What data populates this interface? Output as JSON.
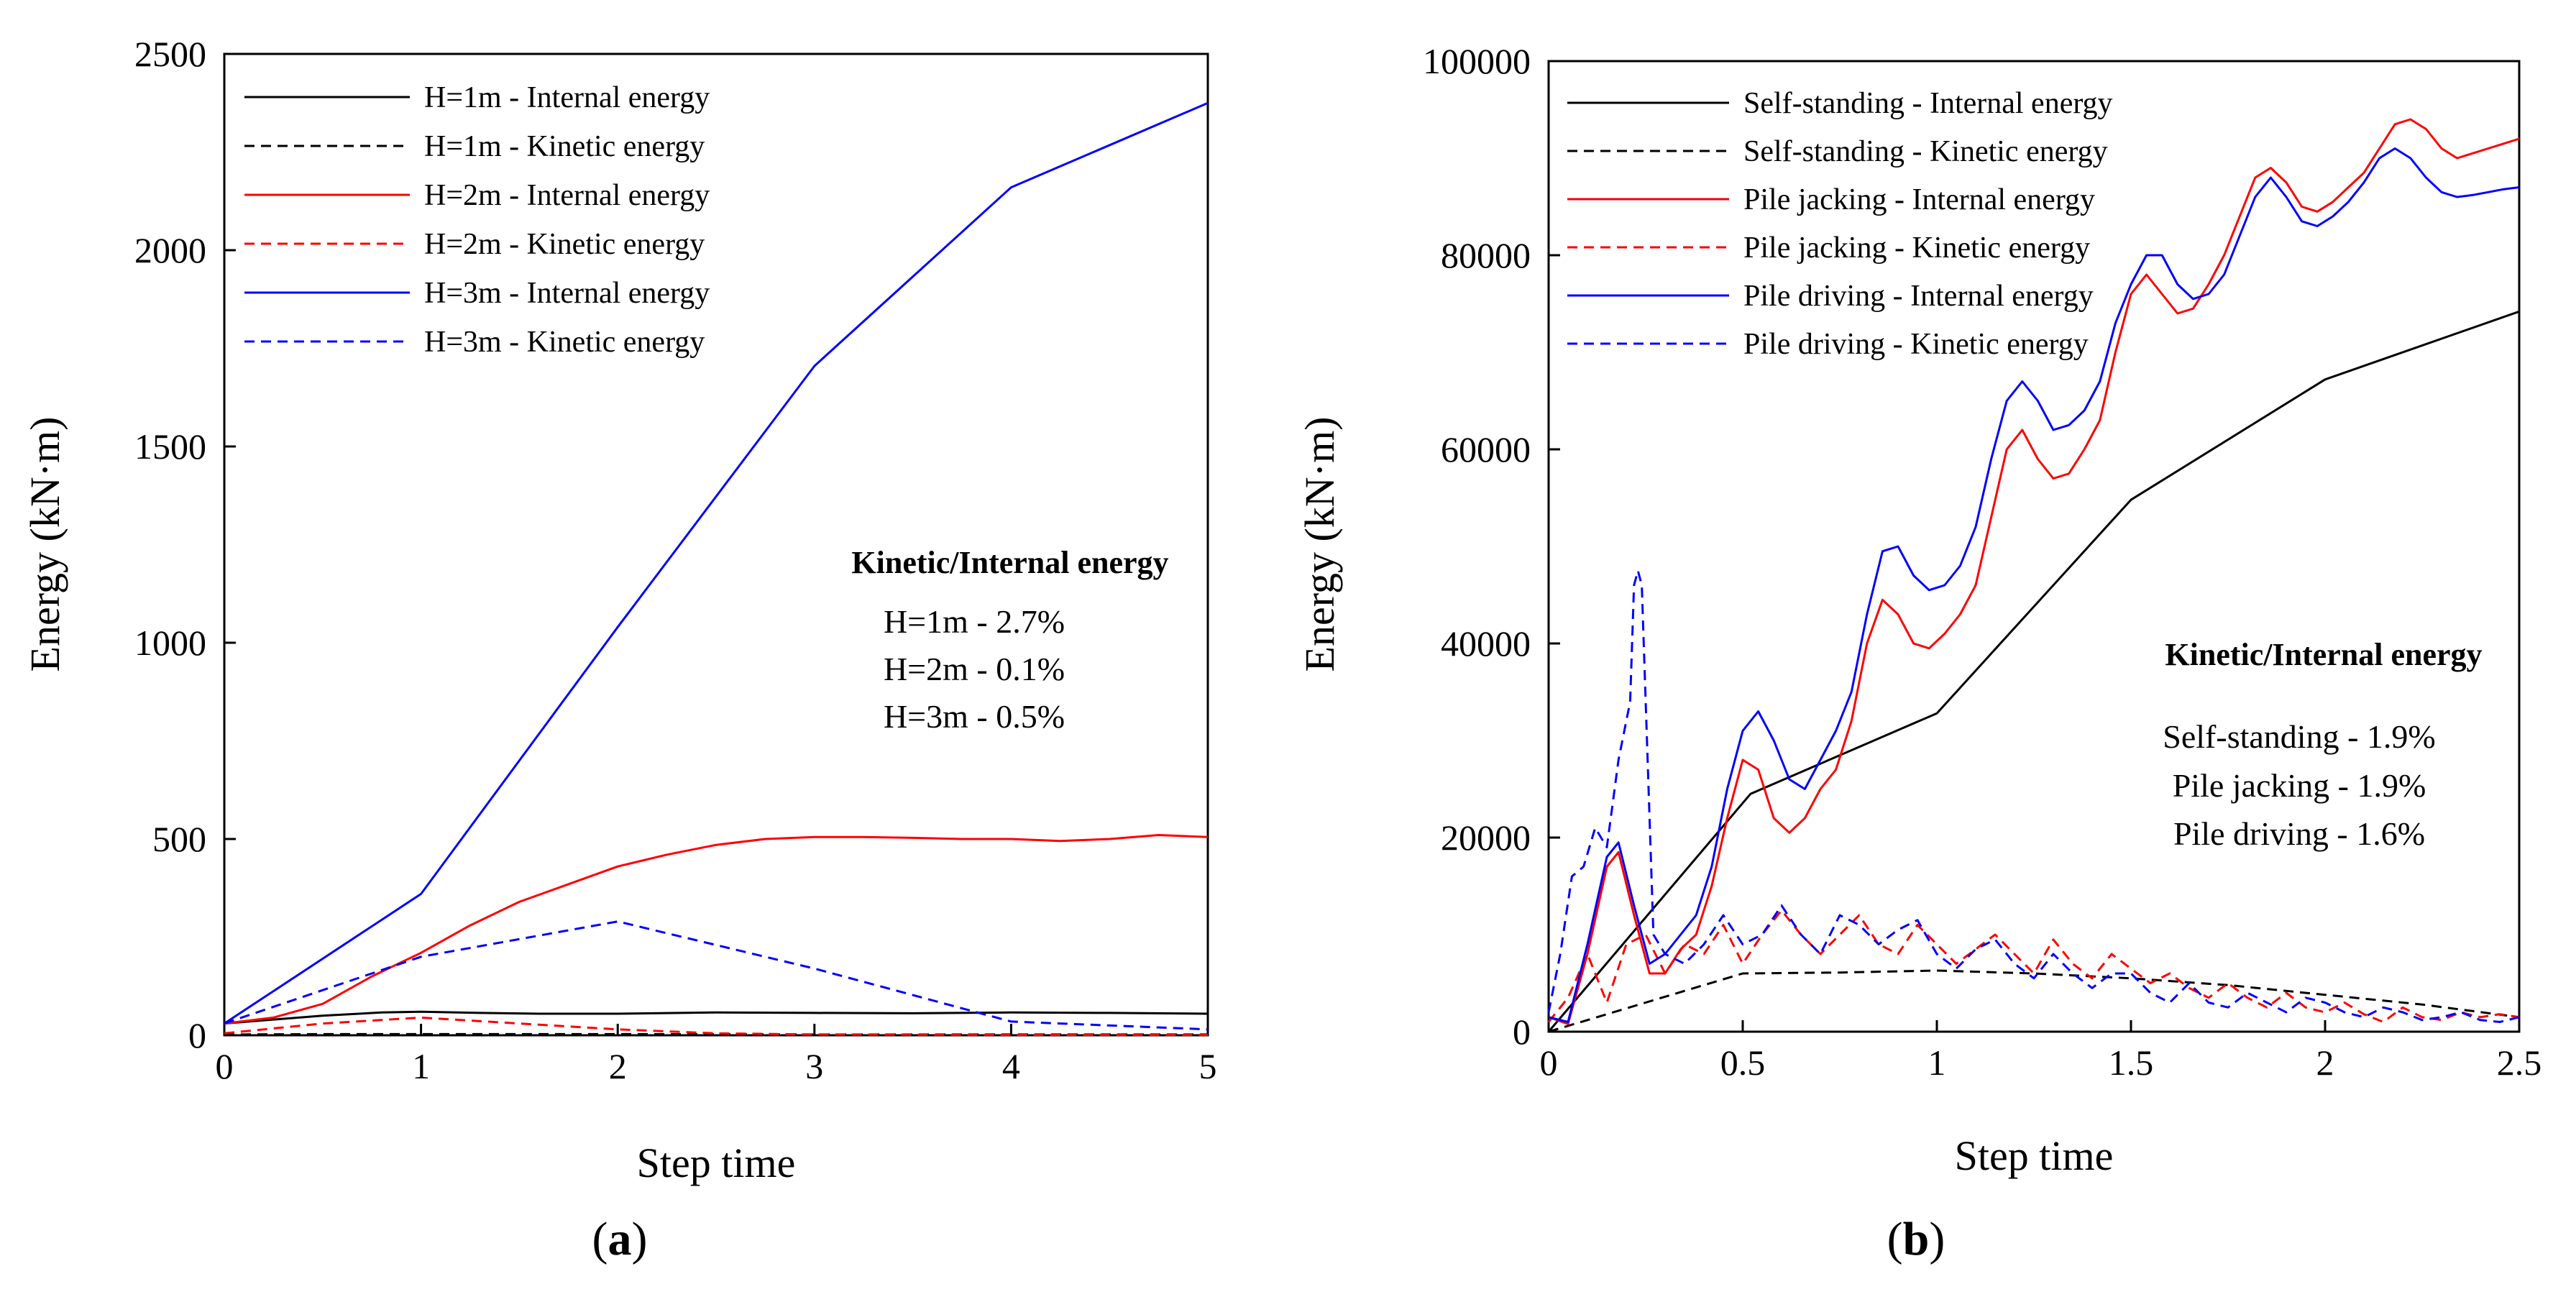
{
  "chart_data": [
    {
      "type": "line",
      "panel_label": "a",
      "xlabel": "Step time",
      "ylabel": "Energy (kN·m)",
      "xlim": [
        0,
        5
      ],
      "ylim": [
        0,
        2500
      ],
      "xticks": [
        0,
        1,
        2,
        3,
        4,
        5
      ],
      "yticks": [
        0,
        500,
        1000,
        1500,
        2000,
        2500
      ],
      "legend_position": "top-left",
      "series": [
        {
          "name": "H=1m - Internal energy",
          "color": "#000000",
          "dash": "solid",
          "x": [
            0,
            0.5,
            0.8,
            1,
            1.3,
            1.6,
            2,
            2.5,
            3,
            3.5,
            4,
            4.5,
            5
          ],
          "y": [
            30,
            50,
            58,
            60,
            57,
            55,
            55,
            58,
            57,
            56,
            58,
            57,
            55
          ]
        },
        {
          "name": "H=1m - Kinetic energy",
          "color": "#000000",
          "dash": "dashed",
          "x": [
            0,
            0.5,
            1,
            2,
            3,
            4,
            5
          ],
          "y": [
            2,
            3,
            3,
            3,
            2,
            2,
            2
          ]
        },
        {
          "name": "H=2m - Internal energy",
          "color": "#ff0000",
          "dash": "solid",
          "x": [
            0,
            0.25,
            0.5,
            0.75,
            1,
            1.25,
            1.5,
            1.75,
            2,
            2.25,
            2.5,
            2.75,
            3,
            3.25,
            3.5,
            3.75,
            4,
            4.25,
            4.5,
            4.75,
            5
          ],
          "y": [
            30,
            45,
            80,
            150,
            210,
            280,
            340,
            385,
            430,
            460,
            485,
            500,
            505,
            505,
            503,
            500,
            500,
            495,
            500,
            510,
            505
          ]
        },
        {
          "name": "H=2m - Kinetic energy",
          "color": "#ff0000",
          "dash": "dashed",
          "x": [
            0,
            0.5,
            1,
            1.5,
            2,
            2.5,
            3,
            4,
            5
          ],
          "y": [
            5,
            30,
            45,
            30,
            15,
            5,
            2,
            1,
            1
          ]
        },
        {
          "name": "H=3m - Internal energy",
          "color": "#0000ff",
          "dash": "solid",
          "x": [
            0,
            1,
            2,
            3,
            4,
            5
          ],
          "y": [
            30,
            360,
            1040,
            1705,
            2160,
            2375
          ]
        },
        {
          "name": "H=3m - Kinetic energy",
          "color": "#0000ff",
          "dash": "dashed",
          "x": [
            0,
            1,
            2,
            3,
            4,
            5
          ],
          "y": [
            30,
            200,
            290,
            170,
            35,
            15
          ]
        }
      ],
      "annotation": {
        "title": "Kinetic/Internal energy",
        "lines": [
          "H=1m - 2.7%",
          "H=2m - 0.1%",
          "H=3m - 0.5%"
        ]
      }
    },
    {
      "type": "line",
      "panel_label": "b",
      "xlabel": "Step time",
      "ylabel": "Energy (kN·m)",
      "xlim": [
        0,
        2.5
      ],
      "ylim": [
        0,
        100000
      ],
      "xticks": [
        0,
        0.5,
        1,
        1.5,
        2,
        2.5
      ],
      "xtick_labels": [
        "0",
        "0.5",
        "1",
        "1.5",
        "2",
        "2.5"
      ],
      "yticks": [
        0,
        20000,
        40000,
        60000,
        80000,
        100000
      ],
      "legend_position": "top-left",
      "series": [
        {
          "name": "Self-standing - Internal energy",
          "color": "#000000",
          "dash": "solid",
          "x": [
            0,
            0.52,
            1.0,
            1.5,
            2.0,
            2.5
          ],
          "y": [
            0,
            24500,
            32800,
            54800,
            67200,
            74200
          ]
        },
        {
          "name": "Self-standing - Kinetic energy",
          "color": "#000000",
          "dash": "dashed",
          "x": [
            0,
            0.25,
            0.5,
            0.75,
            1.0,
            1.25,
            1.5,
            1.75,
            2.0,
            2.25,
            2.5
          ],
          "y": [
            0,
            3000,
            6000,
            6100,
            6300,
            6000,
            5500,
            4800,
            3800,
            2800,
            1500
          ]
        },
        {
          "name": "Pile jacking - Internal energy",
          "color": "#ff0000",
          "dash": "solid",
          "x": [
            0,
            0.05,
            0.1,
            0.15,
            0.18,
            0.22,
            0.26,
            0.3,
            0.34,
            0.38,
            0.42,
            0.46,
            0.5,
            0.54,
            0.58,
            0.62,
            0.66,
            0.7,
            0.74,
            0.78,
            0.82,
            0.86,
            0.9,
            0.94,
            0.98,
            1.02,
            1.06,
            1.1,
            1.14,
            1.18,
            1.22,
            1.26,
            1.3,
            1.34,
            1.38,
            1.42,
            1.46,
            1.5,
            1.54,
            1.58,
            1.62,
            1.66,
            1.7,
            1.74,
            1.78,
            1.82,
            1.86,
            1.9,
            1.94,
            1.98,
            2.02,
            2.06,
            2.1,
            2.14,
            2.18,
            2.22,
            2.26,
            2.3,
            2.34,
            2.38,
            2.42,
            2.46,
            2.5
          ],
          "y": [
            1500,
            800,
            8000,
            17000,
            18500,
            12000,
            6000,
            6000,
            8500,
            10000,
            15000,
            22000,
            28000,
            27000,
            22000,
            20500,
            22000,
            25000,
            27000,
            32000,
            40000,
            44500,
            43000,
            40000,
            39500,
            41000,
            43000,
            46000,
            53000,
            60000,
            62000,
            59000,
            57000,
            57500,
            60000,
            63000,
            70000,
            76000,
            78000,
            76000,
            74000,
            74500,
            77000,
            80000,
            84000,
            88000,
            89000,
            87500,
            85000,
            84500,
            85500,
            87000,
            88500,
            91000,
            93500,
            94000,
            93000,
            91000,
            90000,
            90500,
            91000,
            91500,
            92000
          ]
        },
        {
          "name": "Pile jacking - Kinetic energy",
          "color": "#ff0000",
          "dash": "dashed",
          "x": [
            0,
            0.05,
            0.1,
            0.15,
            0.2,
            0.25,
            0.3,
            0.35,
            0.4,
            0.45,
            0.5,
            0.55,
            0.6,
            0.65,
            0.7,
            0.75,
            0.8,
            0.85,
            0.9,
            0.95,
            1.0,
            1.05,
            1.1,
            1.15,
            1.2,
            1.25,
            1.3,
            1.35,
            1.4,
            1.45,
            1.5,
            1.55,
            1.6,
            1.65,
            1.7,
            1.75,
            1.8,
            1.85,
            1.9,
            1.95,
            2.0,
            2.05,
            2.1,
            2.15,
            2.2,
            2.25,
            2.3,
            2.35,
            2.4,
            2.45,
            2.5
          ],
          "y": [
            1000,
            3500,
            8000,
            3000,
            9000,
            10000,
            6000,
            9000,
            8000,
            11000,
            7000,
            10000,
            12500,
            10000,
            8000,
            10000,
            12000,
            9000,
            8000,
            11000,
            9000,
            7000,
            8500,
            10000,
            8000,
            6000,
            9500,
            7000,
            5500,
            8000,
            6500,
            5000,
            6000,
            4500,
            3500,
            5000,
            3500,
            2500,
            4000,
            2500,
            2000,
            3000,
            1800,
            1000,
            2500,
            1500,
            1200,
            2000,
            1500,
            1800,
            1500
          ]
        },
        {
          "name": "Pile driving - Internal energy",
          "color": "#0000ff",
          "dash": "solid",
          "x": [
            0,
            0.05,
            0.1,
            0.15,
            0.18,
            0.22,
            0.26,
            0.3,
            0.34,
            0.38,
            0.42,
            0.46,
            0.5,
            0.54,
            0.58,
            0.62,
            0.66,
            0.7,
            0.74,
            0.78,
            0.82,
            0.86,
            0.9,
            0.94,
            0.98,
            1.02,
            1.06,
            1.1,
            1.14,
            1.18,
            1.22,
            1.26,
            1.3,
            1.34,
            1.38,
            1.42,
            1.46,
            1.5,
            1.54,
            1.58,
            1.62,
            1.66,
            1.7,
            1.74,
            1.78,
            1.82,
            1.86,
            1.9,
            1.94,
            1.98,
            2.02,
            2.06,
            2.1,
            2.14,
            2.18,
            2.22,
            2.26,
            2.3,
            2.34,
            2.38,
            2.42,
            2.46,
            2.5
          ],
          "y": [
            1500,
            1000,
            9000,
            18000,
            19500,
            13000,
            7000,
            8000,
            10000,
            12000,
            17000,
            25000,
            31000,
            33000,
            30000,
            26000,
            25000,
            28000,
            31000,
            35000,
            43000,
            49500,
            50000,
            47000,
            45500,
            46000,
            48000,
            52000,
            59000,
            65000,
            67000,
            65000,
            62000,
            62500,
            64000,
            67000,
            73000,
            77000,
            80000,
            80000,
            77000,
            75500,
            76000,
            78000,
            82000,
            86000,
            88000,
            86000,
            83500,
            83000,
            84000,
            85500,
            87500,
            90000,
            91000,
            90000,
            88000,
            86500,
            86000,
            86200,
            86500,
            86800,
            87000
          ]
        },
        {
          "name": "Pile driving - Kinetic energy",
          "color": "#0000ff",
          "dash": "dashed",
          "x": [
            0,
            0.03,
            0.06,
            0.09,
            0.12,
            0.15,
            0.18,
            0.21,
            0.22,
            0.23,
            0.24,
            0.27,
            0.3,
            0.35,
            0.4,
            0.45,
            0.5,
            0.55,
            0.6,
            0.65,
            0.7,
            0.75,
            0.8,
            0.85,
            0.9,
            0.95,
            1.0,
            1.05,
            1.1,
            1.15,
            1.2,
            1.25,
            1.3,
            1.35,
            1.4,
            1.45,
            1.5,
            1.55,
            1.6,
            1.65,
            1.7,
            1.75,
            1.8,
            1.85,
            1.9,
            1.95,
            2.0,
            2.05,
            2.1,
            2.15,
            2.2,
            2.25,
            2.3,
            2.35,
            2.4,
            2.45,
            2.5
          ],
          "y": [
            2000,
            8000,
            16000,
            17000,
            21000,
            19000,
            28000,
            34000,
            46000,
            47500,
            46000,
            10000,
            8000,
            7000,
            9000,
            12000,
            9000,
            10000,
            13000,
            10000,
            8000,
            12000,
            11000,
            9000,
            10500,
            11500,
            8000,
            6500,
            8500,
            9500,
            7000,
            5500,
            8000,
            6000,
            4500,
            6000,
            6000,
            4000,
            3000,
            5000,
            3000,
            2500,
            4000,
            3000,
            2000,
            3500,
            3000,
            2000,
            1500,
            2500,
            2000,
            1200,
            1500,
            2000,
            1200,
            1000,
            1500
          ]
        }
      ],
      "annotation": {
        "title": "Kinetic/Internal energy",
        "lines": [
          "Self-standing - 1.9%",
          "Pile jacking - 1.9%",
          "Pile driving - 1.6%"
        ]
      }
    }
  ]
}
